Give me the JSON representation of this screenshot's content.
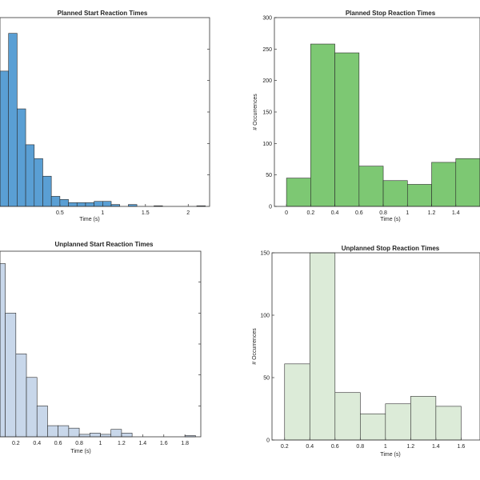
{
  "chart_data": [
    {
      "type": "histogram",
      "title": "Planned Start Reaction Times",
      "xlabel": "Time (s)",
      "ylabel": "",
      "xlim": [
        -0.2,
        2.25
      ],
      "ylim": [
        0,
        300
      ],
      "xticks": [
        "0.5",
        "1",
        "1.5",
        "2"
      ],
      "yticks": [],
      "color": "#5a9fd4",
      "bins": [
        {
          "x0": -0.2,
          "x1": -0.1,
          "value": 215
        },
        {
          "x0": -0.1,
          "x1": 0.0,
          "value": 275
        },
        {
          "x0": 0.0,
          "x1": 0.1,
          "value": 155
        },
        {
          "x0": 0.1,
          "x1": 0.2,
          "value": 98
        },
        {
          "x0": 0.2,
          "x1": 0.3,
          "value": 76
        },
        {
          "x0": 0.3,
          "x1": 0.4,
          "value": 48
        },
        {
          "x0": 0.4,
          "x1": 0.5,
          "value": 16
        },
        {
          "x0": 0.5,
          "x1": 0.6,
          "value": 11
        },
        {
          "x0": 0.6,
          "x1": 0.7,
          "value": 6
        },
        {
          "x0": 0.7,
          "x1": 0.8,
          "value": 6
        },
        {
          "x0": 0.8,
          "x1": 0.9,
          "value": 6
        },
        {
          "x0": 0.9,
          "x1": 1.0,
          "value": 8
        },
        {
          "x0": 1.0,
          "x1": 1.1,
          "value": 8
        },
        {
          "x0": 1.1,
          "x1": 1.2,
          "value": 3
        },
        {
          "x0": 1.3,
          "x1": 1.4,
          "value": 3
        },
        {
          "x0": 1.6,
          "x1": 1.7,
          "value": 1
        },
        {
          "x0": 2.1,
          "x1": 2.2,
          "value": 1
        }
      ]
    },
    {
      "type": "histogram",
      "title": "Planned Stop Reaction Times",
      "xlabel": "Time (s)",
      "ylabel": "# Occurrences",
      "xlim": [
        -0.1,
        1.6
      ],
      "ylim": [
        0,
        300
      ],
      "xticks": [
        "0",
        "0.2",
        "0.4",
        "0.6",
        "0.8",
        "1",
        "1.2",
        "1.4"
      ],
      "yticks": [
        "0",
        "50",
        "100",
        "150",
        "200",
        "250",
        "300"
      ],
      "color": "#7dc873",
      "bins": [
        {
          "x0": 0.0,
          "x1": 0.2,
          "value": 45
        },
        {
          "x0": 0.2,
          "x1": 0.4,
          "value": 258
        },
        {
          "x0": 0.4,
          "x1": 0.6,
          "value": 244
        },
        {
          "x0": 0.6,
          "x1": 0.8,
          "value": 64
        },
        {
          "x0": 0.8,
          "x1": 1.0,
          "value": 41
        },
        {
          "x0": 1.0,
          "x1": 1.2,
          "value": 35
        },
        {
          "x0": 1.2,
          "x1": 1.4,
          "value": 70
        },
        {
          "x0": 1.4,
          "x1": 1.6,
          "value": 76
        }
      ]
    },
    {
      "type": "histogram",
      "title": "Unplanned Start Reaction Times",
      "xlabel": "Time (s)",
      "ylabel": "",
      "xlim": [
        0.05,
        1.95
      ],
      "ylim": [
        0,
        150
      ],
      "xticks": [
        "0.2",
        "0.4",
        "0.6",
        "0.8",
        "1",
        "1.2",
        "1.4",
        "1.6",
        "1.8"
      ],
      "yticks": [],
      "color": "#c8d7ea",
      "bins": [
        {
          "x0": 0.0,
          "x1": 0.1,
          "value": 140
        },
        {
          "x0": 0.1,
          "x1": 0.2,
          "value": 100
        },
        {
          "x0": 0.2,
          "x1": 0.3,
          "value": 67
        },
        {
          "x0": 0.3,
          "x1": 0.4,
          "value": 48
        },
        {
          "x0": 0.4,
          "x1": 0.5,
          "value": 25
        },
        {
          "x0": 0.5,
          "x1": 0.6,
          "value": 9
        },
        {
          "x0": 0.6,
          "x1": 0.7,
          "value": 9
        },
        {
          "x0": 0.7,
          "x1": 0.8,
          "value": 7
        },
        {
          "x0": 0.8,
          "x1": 0.9,
          "value": 2
        },
        {
          "x0": 0.9,
          "x1": 1.0,
          "value": 3
        },
        {
          "x0": 1.0,
          "x1": 1.1,
          "value": 2
        },
        {
          "x0": 1.1,
          "x1": 1.2,
          "value": 6
        },
        {
          "x0": 1.2,
          "x1": 1.3,
          "value": 3
        },
        {
          "x0": 1.8,
          "x1": 1.9,
          "value": 1
        }
      ]
    },
    {
      "type": "histogram",
      "title": "Unplanned Stop Reaction Times",
      "xlabel": "Time (s)",
      "ylabel": "# Occurrences",
      "xlim": [
        0.1,
        1.75
      ],
      "ylim": [
        0,
        150
      ],
      "xticks": [
        "0.2",
        "0.4",
        "0.6",
        "0.8",
        "1",
        "1.2",
        "1.4",
        "1.6",
        "1.8"
      ],
      "yticks": [
        "0",
        "50",
        "100",
        "150"
      ],
      "color": "#dcebd8",
      "bins": [
        {
          "x0": 0.2,
          "x1": 0.4,
          "value": 61
        },
        {
          "x0": 0.4,
          "x1": 0.6,
          "value": 150
        },
        {
          "x0": 0.6,
          "x1": 0.8,
          "value": 38
        },
        {
          "x0": 0.8,
          "x1": 1.0,
          "value": 21
        },
        {
          "x0": 1.0,
          "x1": 1.2,
          "value": 29
        },
        {
          "x0": 1.2,
          "x1": 1.4,
          "value": 35
        },
        {
          "x0": 1.4,
          "x1": 1.6,
          "value": 27
        }
      ]
    }
  ]
}
